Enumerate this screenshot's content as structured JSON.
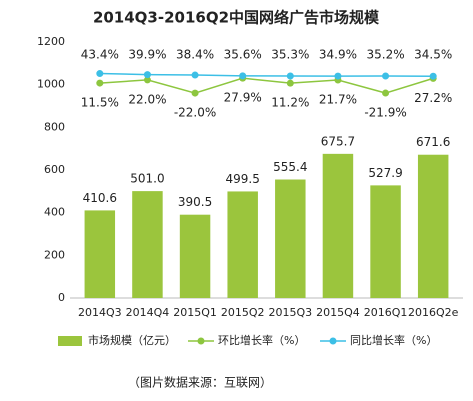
{
  "chart_data": {
    "type": "bar",
    "title": "2014Q3-2016Q2中国网络广告市场规模",
    "categories": [
      "2014Q3",
      "2014Q4",
      "2015Q1",
      "2015Q2",
      "2015Q3",
      "2015Q4",
      "2016Q1",
      "2016Q2e"
    ],
    "series": [
      {
        "name": "市场规模（亿元）",
        "type": "bar",
        "color": "#9bc53d",
        "values": [
          410.6,
          501.0,
          390.5,
          499.5,
          555.4,
          675.7,
          527.9,
          671.6
        ],
        "value_labels": [
          "410.6",
          "501.0",
          "390.5",
          "499.5",
          "555.4",
          "675.7",
          "527.9",
          "671.6"
        ]
      },
      {
        "name": "环比增长率（%）",
        "type": "line",
        "axis": "y2",
        "color": "#8dc63f",
        "values": [
          11.5,
          22.0,
          -22.0,
          27.9,
          11.2,
          21.7,
          -21.9,
          27.2
        ],
        "value_labels": [
          "11.5%",
          "22.0%",
          "-22.0%",
          "27.9%",
          "11.2%",
          "21.7%",
          "-21.9%",
          "27.2%"
        ]
      },
      {
        "name": "同比增长率（%）",
        "type": "line",
        "axis": "y2",
        "color": "#3cbfe6",
        "values": [
          43.4,
          39.9,
          38.4,
          35.6,
          35.3,
          34.9,
          35.2,
          34.5
        ],
        "value_labels": [
          "43.4%",
          "39.9%",
          "38.4%",
          "35.6%",
          "35.3%",
          "34.9%",
          "35.2%",
          "34.5%"
        ]
      }
    ],
    "ylim": [
      0,
      1200
    ],
    "yticks": [
      0,
      200,
      400,
      600,
      800,
      1000,
      1200
    ],
    "y2lim": [
      -708,
      149
    ],
    "source": "（图片数据来源：互联网）"
  }
}
